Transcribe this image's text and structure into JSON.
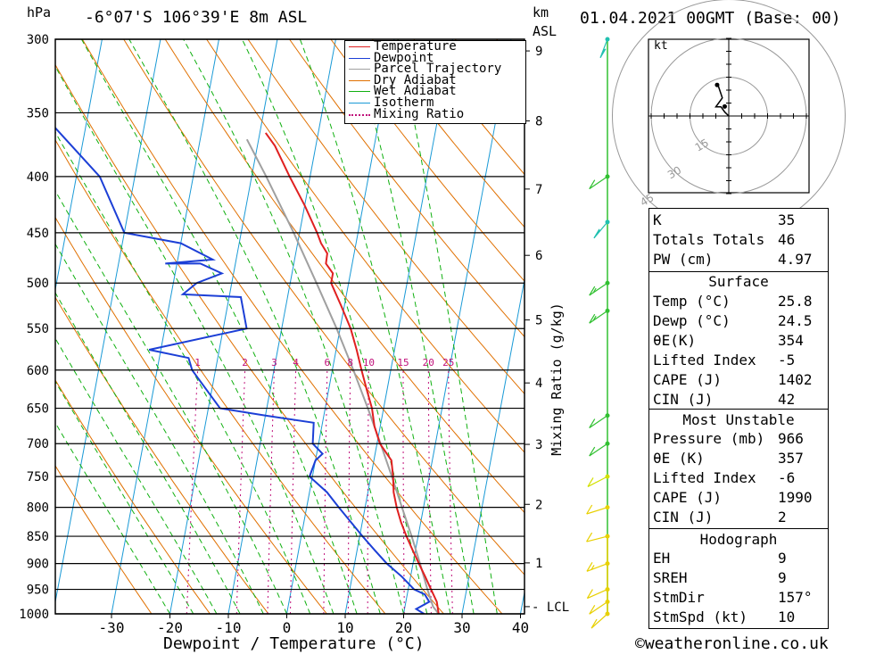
{
  "header": {
    "location": "-6°07'S  106°39'E  8m  ASL",
    "datetime": "01.04.2021  00GMT  (Base: 00)",
    "hpa_label": "hPa",
    "km_label": "km",
    "asl_label": "ASL",
    "kt_label": "kt"
  },
  "footer": {
    "x_axis_title": "Dewpoint / Temperature (°C)",
    "copyright": "©weatheronline.co.uk",
    "mixing_ratio_title": "Mixing Ratio (g/kg)",
    "lcl_label": "LCL"
  },
  "legend": [
    {
      "label": "Temperature",
      "color": "#e02020",
      "style": "solid"
    },
    {
      "label": "Dewpoint",
      "color": "#1c3fd6",
      "style": "solid"
    },
    {
      "label": "Parcel Trajectory",
      "color": "#a0a0a0",
      "style": "solid"
    },
    {
      "label": "Dry Adiabat",
      "color": "#e07000",
      "style": "solid"
    },
    {
      "label": "Wet Adiabat",
      "color": "#10b010",
      "style": "solid"
    },
    {
      "label": "Isotherm",
      "color": "#1a9ad6",
      "style": "solid"
    },
    {
      "label": "Mixing Ratio",
      "color": "#c0107a",
      "style": "dotted"
    }
  ],
  "indices": {
    "top": [
      {
        "key": "K",
        "value": "35"
      },
      {
        "key": "Totals Totals",
        "value": "46"
      },
      {
        "key": "PW (cm)",
        "value": "4.97"
      }
    ],
    "surface_title": "Surface",
    "surface": [
      {
        "key": "Temp (°C)",
        "value": "25.8"
      },
      {
        "key": "Dewp (°C)",
        "value": "24.5"
      },
      {
        "key": "θE(K)",
        "value": "354"
      },
      {
        "key": "Lifted Index",
        "value": "-5"
      },
      {
        "key": "CAPE (J)",
        "value": "1402"
      },
      {
        "key": "CIN (J)",
        "value": "42"
      }
    ],
    "mu_title": "Most Unstable",
    "mu": [
      {
        "key": "Pressure (mb)",
        "value": "966"
      },
      {
        "key": "θE (K)",
        "value": "357"
      },
      {
        "key": "Lifted Index",
        "value": "-6"
      },
      {
        "key": "CAPE (J)",
        "value": "1990"
      },
      {
        "key": "CIN (J)",
        "value": "2"
      }
    ],
    "hodo_title": "Hodograph",
    "hodo": [
      {
        "key": "EH",
        "value": "9"
      },
      {
        "key": "SREH",
        "value": "9"
      },
      {
        "key": "StmDir",
        "value": "157°"
      },
      {
        "key": "StmSpd (kt)",
        "value": "10"
      }
    ]
  },
  "chart_data": {
    "type": "skew-t log-p",
    "xlabel": "Dewpoint / Temperature (°C)",
    "ylabel": "hPa",
    "x_ticks": [
      -30,
      -20,
      -10,
      0,
      10,
      20,
      30,
      40
    ],
    "pressure_levels": [
      300,
      350,
      400,
      450,
      500,
      550,
      600,
      650,
      700,
      750,
      800,
      850,
      900,
      950,
      1000
    ],
    "km_ticks": [
      1,
      2,
      3,
      4,
      5,
      6,
      7,
      8,
      9
    ],
    "mixing_ratio_labels": [
      1,
      2,
      3,
      4,
      6,
      8,
      10,
      15,
      20,
      25
    ],
    "series": [
      {
        "name": "Temperature",
        "color": "#e02020",
        "points": [
          [
            1000,
            26.0
          ],
          [
            975,
            25.3
          ],
          [
            950,
            23.9
          ],
          [
            925,
            22.5
          ],
          [
            900,
            21.0
          ],
          [
            875,
            19.5
          ],
          [
            850,
            18.0
          ],
          [
            825,
            16.6
          ],
          [
            800,
            15.4
          ],
          [
            775,
            14.4
          ],
          [
            750,
            13.8
          ],
          [
            725,
            13.0
          ],
          [
            700,
            10.5
          ],
          [
            675,
            9.0
          ],
          [
            650,
            8.0
          ],
          [
            625,
            6.5
          ],
          [
            600,
            5.0
          ],
          [
            575,
            3.5
          ],
          [
            550,
            1.8
          ],
          [
            525,
            -0.5
          ],
          [
            500,
            -3.0
          ],
          [
            490,
            -3.0
          ],
          [
            480,
            -4.5
          ],
          [
            470,
            -4.6
          ],
          [
            460,
            -6.0
          ],
          [
            450,
            -7.0
          ],
          [
            425,
            -10.0
          ],
          [
            400,
            -13.5
          ],
          [
            375,
            -17.0
          ],
          [
            365,
            -19.0
          ]
        ]
      },
      {
        "name": "Dewpoint",
        "color": "#1c3fd6",
        "points": [
          [
            1000,
            23.5
          ],
          [
            990,
            22.0
          ],
          [
            975,
            24.0
          ],
          [
            960,
            23.0
          ],
          [
            950,
            21.0
          ],
          [
            925,
            18.5
          ],
          [
            900,
            15.5
          ],
          [
            875,
            13.0
          ],
          [
            850,
            10.5
          ],
          [
            800,
            5.5
          ],
          [
            775,
            3.0
          ],
          [
            750,
            -0.5
          ],
          [
            725,
            0.0
          ],
          [
            715,
            1.0
          ],
          [
            700,
            -1.0
          ],
          [
            670,
            -1.5
          ],
          [
            660,
            -10.0
          ],
          [
            650,
            -18.0
          ],
          [
            600,
            -24.0
          ],
          [
            585,
            -25.0
          ],
          [
            575,
            -32.0
          ],
          [
            550,
            -16.0
          ],
          [
            515,
            -18.0
          ],
          [
            512,
            -28.0
          ],
          [
            500,
            -26.0
          ],
          [
            490,
            -22.0
          ],
          [
            480,
            -26.0
          ],
          [
            480,
            -32.0
          ],
          [
            476,
            -24.0
          ],
          [
            460,
            -30.0
          ],
          [
            450,
            -40.0
          ],
          [
            400,
            -46.0
          ],
          [
            350,
            -58.0
          ],
          [
            330,
            -68.0
          ],
          [
            310,
            -76.0
          ],
          [
            300,
            -73.0
          ]
        ]
      },
      {
        "name": "Parcel Trajectory",
        "color": "#a0a0a0",
        "points": [
          [
            1000,
            26.0
          ],
          [
            985,
            24.8
          ],
          [
            950,
            23.3
          ],
          [
            900,
            21.2
          ],
          [
            850,
            18.9
          ],
          [
            800,
            16.3
          ],
          [
            750,
            13.6
          ],
          [
            700,
            10.6
          ],
          [
            650,
            7.3
          ],
          [
            600,
            3.6
          ],
          [
            550,
            -0.6
          ],
          [
            500,
            -5.5
          ],
          [
            450,
            -11.0
          ],
          [
            400,
            -17.5
          ],
          [
            370,
            -22.0
          ]
        ]
      }
    ]
  },
  "hodograph": {
    "rings_kt": [
      15,
      30,
      45
    ],
    "ring_labels": [
      "15",
      "30",
      "45"
    ],
    "trace_kt": [
      [
        0,
        0
      ],
      [
        -1.5,
        1.5
      ],
      [
        -3,
        3.5
      ],
      [
        -5,
        3.5
      ],
      [
        -2.5,
        7
      ],
      [
        -4,
        11.5
      ],
      [
        -4.5,
        12
      ]
    ],
    "storm_motion": {
      "dir_deg": 157,
      "speed_kt": 10
    }
  },
  "wind_profile": [
    {
      "p": 1000,
      "color": "#e8d000",
      "dir": 230,
      "spd": 10
    },
    {
      "p": 975,
      "color": "#e8d000",
      "dir": 240,
      "spd": 10
    },
    {
      "p": 950,
      "color": "#e8d000",
      "dir": 255,
      "spd": 10
    },
    {
      "p": 900,
      "color": "#e8d000",
      "dir": 260,
      "spd": 15
    },
    {
      "p": 850,
      "color": "#e8d000",
      "dir": 270,
      "spd": 10
    },
    {
      "p": 800,
      "color": "#e8d000",
      "dir": 265,
      "spd": 10
    },
    {
      "p": 750,
      "color": "#d2e000",
      "dir": 290,
      "spd": 10
    },
    {
      "p": 700,
      "color": "#30c030",
      "dir": 300,
      "spd": 10
    },
    {
      "p": 660,
      "color": "#30c030",
      "dir": 300,
      "spd": 10
    },
    {
      "p": 530,
      "color": "#30c030",
      "dir": 300,
      "spd": 15
    },
    {
      "p": 500,
      "color": "#30c030",
      "dir": 300,
      "spd": 15
    },
    {
      "p": 440,
      "color": "#20c0b0",
      "dir": 320,
      "spd": 15
    },
    {
      "p": 400,
      "color": "#30c030",
      "dir": 300,
      "spd": 10
    },
    {
      "p": 300,
      "color": "#20c0b0",
      "dir": 340,
      "spd": 15
    }
  ]
}
